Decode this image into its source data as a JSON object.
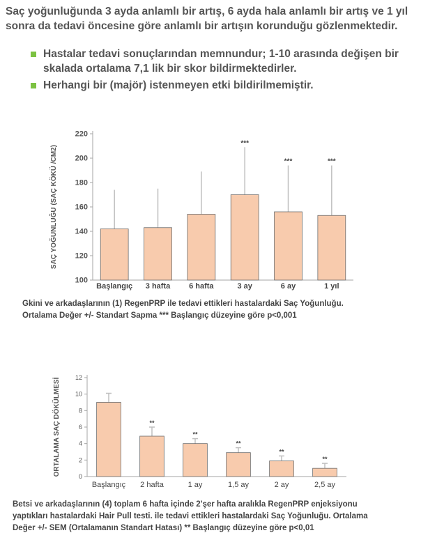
{
  "intro": {
    "text": "Saç yoğunluğunda 3 ayda anlamlı bir artış, 6 ayda hala anlamlı bir artış ve 1 yıl sonra da tedavi öncesine göre anlamlı bir artışın korunduğu gözlenmektedir."
  },
  "bullets": [
    "Hastalar tedavi sonuçlarından memnundur; 1-10 arasında değişen bir skalada ortalama 7,1 lik bir skor bildirmektedirler.",
    "Herhangi bir (majör) istenmeyen etki bildirilmemiştir."
  ],
  "colors": {
    "bullet": "#7cc242",
    "bar_fill": "#f8cbad",
    "bar_stroke": "#6b6b6b",
    "error_bar": "#bfbfbf",
    "axis": "#a6a6a6"
  },
  "chart_data": [
    {
      "type": "bar",
      "title": "",
      "ylabel": "SAÇ YOĞUNLUĞU (SAÇ KÖKÜ /CM2)",
      "xlabel": "",
      "categories": [
        "Başlangıç",
        "3 hafta",
        "6 hafta",
        "3 ay",
        "6 ay",
        "1 yıl"
      ],
      "values": [
        142,
        143,
        154,
        170,
        156,
        153
      ],
      "error_upper": [
        174,
        175,
        189,
        209,
        194,
        194
      ],
      "significance": [
        "",
        "",
        "",
        "***",
        "***",
        "***"
      ],
      "ylim": [
        100,
        220
      ],
      "yticks": [
        100,
        120,
        140,
        160,
        180,
        200,
        220
      ],
      "grid": false,
      "caption": "Gkini ve arkadaşlarının (1) RegenPRP ile tedavi ettikleri hastalardaki Saç Yoğunluğu. Ortalama Değer +/- Standart Sapma *** Başlangıç düzeyine göre p<0,001"
    },
    {
      "type": "bar",
      "title": "",
      "ylabel": "ORTALAMA SAÇ DÖKÜLMESİ",
      "xlabel": "",
      "categories": [
        "Başlangıç",
        "2 hafta",
        "1 ay",
        "1,5 ay",
        "2 ay",
        "2,5 ay"
      ],
      "values": [
        9,
        4.9,
        4,
        2.9,
        1.9,
        1
      ],
      "error_upper": [
        10.1,
        6,
        4.6,
        3.5,
        2.5,
        1.6
      ],
      "significance": [
        "",
        "**",
        "**",
        "**",
        "**",
        "**"
      ],
      "ylim": [
        0,
        12
      ],
      "yticks": [
        0,
        2,
        4,
        6,
        8,
        10,
        12
      ],
      "grid": false,
      "caption": "Betsi ve arkadaşlarının (4) toplam 6 hafta içinde 2'şer hafta aralıkla RegenPRP enjeksiyonu yaptıkları hastalardaki Hair Pull testi. ile tedavi ettikleri hastalardaki Saç Yoğunluğu. Ortalama Değer +/- SEM (Ortalamanın Standart Hatası) ** Başlangıç düzeyine göre p<0,01"
    }
  ]
}
